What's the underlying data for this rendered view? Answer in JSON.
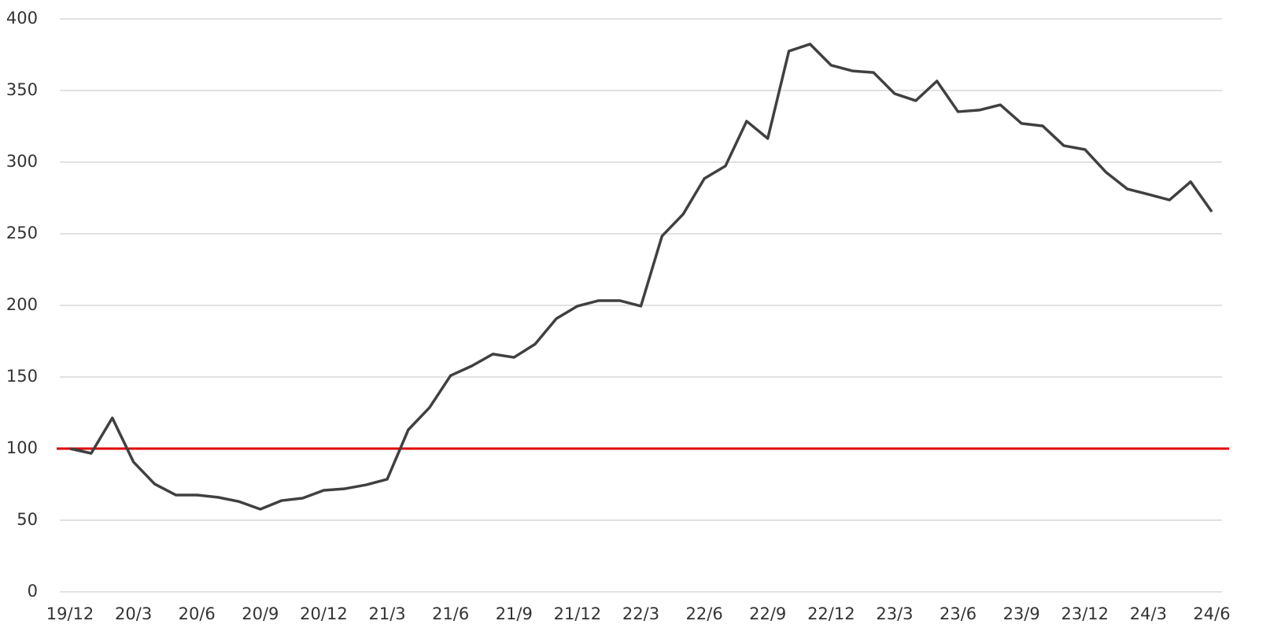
{
  "chart_data": {
    "type": "line",
    "categories": [
      "19/12",
      null,
      null,
      "20/3",
      null,
      null,
      "20/6",
      null,
      null,
      "20/9",
      null,
      null,
      "20/12",
      null,
      null,
      "21/3",
      null,
      null,
      "21/6",
      null,
      null,
      "21/9",
      null,
      null,
      "21/12",
      null,
      null,
      "22/3",
      null,
      null,
      "22/6",
      null,
      null,
      "22/9",
      null,
      null,
      "22/12",
      null,
      null,
      "23/3",
      null,
      null,
      "23/6",
      null,
      null,
      "23/9",
      null,
      null,
      "23/12",
      null,
      null,
      "24/3",
      null,
      null,
      "24/6"
    ],
    "values": [
      100,
      96.7,
      121.4,
      90.7,
      75.3,
      67.6,
      67.6,
      66,
      63,
      57.7,
      63.7,
      65.4,
      70.9,
      72,
      74.7,
      78.6,
      113.2,
      128.6,
      151,
      157.7,
      166,
      163.7,
      173,
      190.7,
      199.5,
      203.3,
      203.3,
      199.5,
      248.4,
      263.7,
      288.5,
      297.3,
      328.6,
      316.5,
      377.5,
      382.4,
      367.6,
      363.7,
      362.6,
      347.8,
      342.9,
      356.6,
      335.2,
      336.3,
      340,
      327,
      325.3,
      311.5,
      308.8,
      292.9,
      281.3,
      277.5,
      273.6,
      286.3,
      265.4
    ],
    "color": "#404040",
    "ylim": [
      0,
      400
    ],
    "yticks": [
      0,
      50,
      100,
      150,
      200,
      250,
      300,
      350,
      400
    ],
    "grid": true,
    "reference_line": {
      "value": 100,
      "color": "#e00000"
    }
  }
}
